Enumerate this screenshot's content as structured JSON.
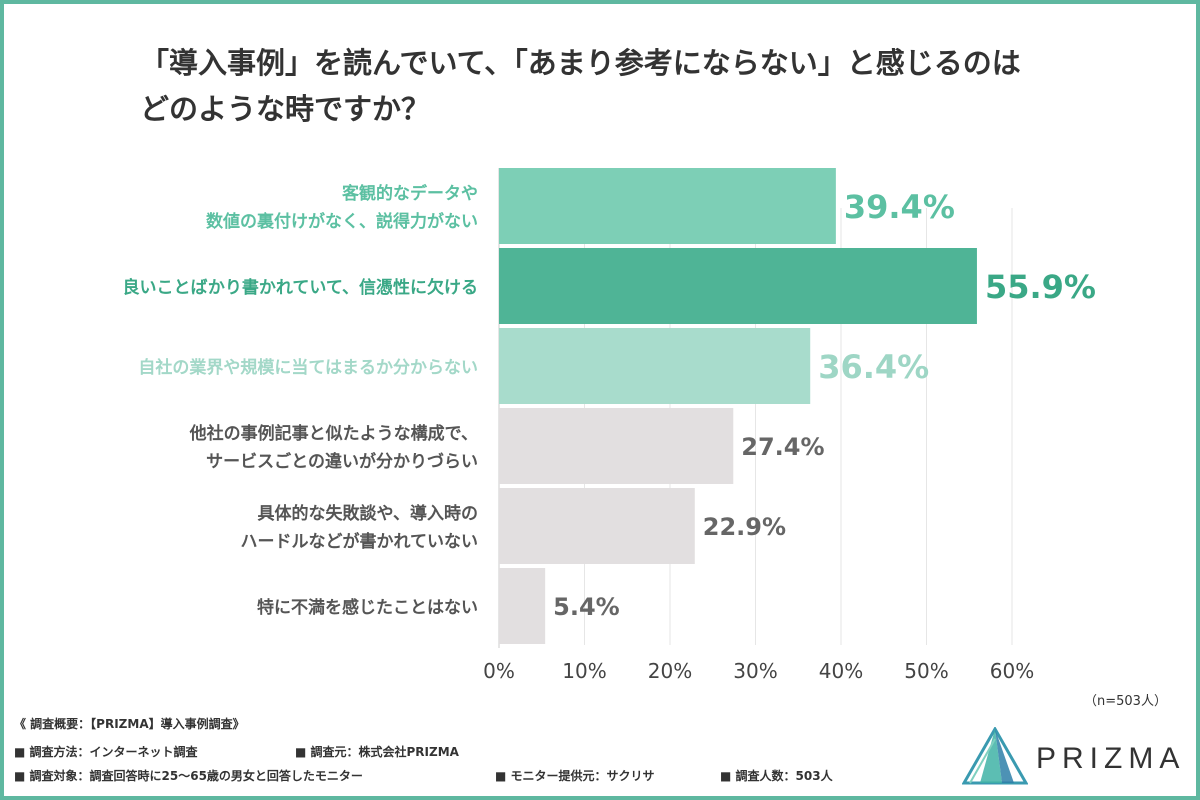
{
  "title_line1": "「導入事例」を読んでいて、「あまり参考にならない」と感じるのは",
  "title_line2": "どのような時ですか？",
  "sample_size": "（n=503人）",
  "chart_data": {
    "type": "bar",
    "orientation": "horizontal",
    "categories": [
      [
        "客観的なデータや",
        "数値の裏付けがなく、説得力がない"
      ],
      [
        "良いことばかり書かれていて、信憑性に欠ける"
      ],
      [
        "自社の業界や規模に当てはまるか分からない"
      ],
      [
        "他社の事例記事と似たような構成で、",
        "サービスごとの違いが分かりづらい"
      ],
      [
        "具体的な失敗談や、導入時の",
        "ハードルなどが書かれていない"
      ],
      [
        "特に不満を感じたことはない"
      ]
    ],
    "values": [
      39.4,
      55.9,
      36.4,
      27.4,
      22.9,
      5.4
    ],
    "value_labels": [
      "39.4%",
      "55.9%",
      "36.4%",
      "27.4%",
      "22.9%",
      "5.4%"
    ],
    "bar_colors": [
      "#7dcfb6",
      "#4fb496",
      "#a8dccc",
      "#e2dfe0",
      "#e2dfe0",
      "#e2dfe0"
    ],
    "label_colors": [
      "#5cc0a2",
      "#3aa886",
      "#a3d8c8",
      "#555555",
      "#555555",
      "#555555"
    ],
    "value_colors": [
      "#5cc0a2",
      "#3aa886",
      "#9ed6c5",
      "#666666",
      "#666666",
      "#666666"
    ],
    "xlim": [
      0,
      60
    ],
    "xticks": [
      "0%",
      "10%",
      "20%",
      "30%",
      "40%",
      "50%",
      "60%"
    ],
    "grid": true
  },
  "footer": {
    "line1": "《 調査概要：【PRIZMA】導入事例調査》",
    "method": "■ 調査方法：インターネット調査",
    "source": "■ 調査元：株式会社PRIZMA",
    "target": "■ 調査対象：調査回答時に25〜65歳の男女と回答したモニター",
    "provider": "■ モニター提供元：サクリサ",
    "count": "■ 調査人数：503人"
  },
  "logo": {
    "text": "PRIZMA"
  }
}
